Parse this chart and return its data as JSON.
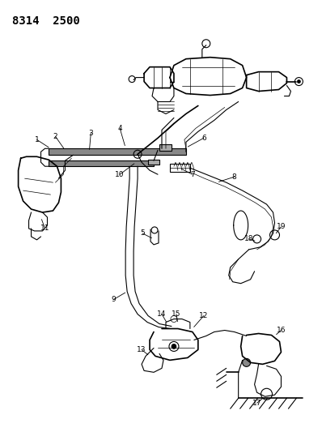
{
  "title": "8314  2500",
  "title_fontsize": 10,
  "bg_color": "#ffffff",
  "line_color": "#000000",
  "fig_width": 3.98,
  "fig_height": 5.33,
  "dpi": 100
}
